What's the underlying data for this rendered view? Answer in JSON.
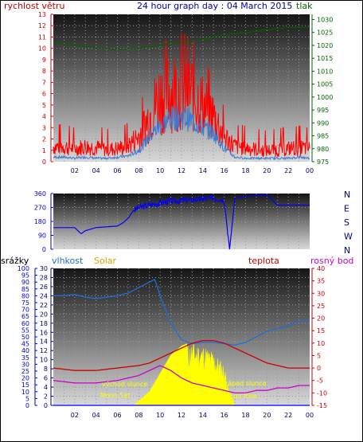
{
  "header": {
    "wind_label": "rychlost větru",
    "title": "24 hour graph day : 04 March 2015",
    "pressure_label": "tlak"
  },
  "bottom_labels": {
    "rain": "srážky",
    "humidity": "vlhkost",
    "solar": "Solar",
    "temperature": "teplota",
    "dewpoint": "rosný bod"
  },
  "annotations": {
    "sunrise": "východ slunce",
    "sunset": "západ slunce",
    "moonset": "Moon Set",
    "moonrise": "Moon Rise"
  },
  "colors": {
    "wind": "#ff0000",
    "wind_avg": "#3a7bd5",
    "pressure": "#006400",
    "direction": "#0000ff",
    "humidity": "#1e6fd9",
    "temperature": "#cc0000",
    "dewpoint": "#cc00cc",
    "solar": "#ffff00",
    "rain": "#0000ff"
  },
  "chart_data": [
    {
      "type": "line",
      "name": "wind",
      "x_ticks": [
        "02",
        "04",
        "06",
        "08",
        "10",
        "12",
        "14",
        "16",
        "18",
        "20",
        "22",
        "00"
      ],
      "left_axis": {
        "label": "rychlost větru",
        "ticks": [
          "0",
          "1",
          "2",
          "3",
          "4",
          "5",
          "6",
          "7",
          "8",
          "9",
          "10",
          "11",
          "12",
          "13"
        ],
        "range": [
          0,
          13
        ]
      },
      "right_axis": {
        "label": "tlak",
        "ticks": [
          "975",
          "980",
          "985",
          "990",
          "995",
          "1000",
          "1005",
          "1010",
          "1015",
          "1020",
          "1025",
          "1030"
        ],
        "range": [
          975,
          1032
        ]
      },
      "series": [
        {
          "name": "gust",
          "x": [
            0,
            1,
            2,
            3,
            4,
            5,
            6,
            7,
            8,
            9,
            10,
            11,
            12,
            13,
            14,
            15,
            16,
            17,
            18,
            19,
            20,
            21,
            22,
            23,
            24
          ],
          "values": [
            1.5,
            1.5,
            1.3,
            1.5,
            1.4,
            1.2,
            1.3,
            1.6,
            2.5,
            4.5,
            6.5,
            7.0,
            7.3,
            6.8,
            5.5,
            4.5,
            2.5,
            1.5,
            1.4,
            1.2,
            1.1,
            1.2,
            1.3,
            1.4,
            1.3
          ]
        },
        {
          "name": "average",
          "x": [
            0,
            1,
            2,
            3,
            4,
            5,
            6,
            7,
            8,
            9,
            10,
            11,
            12,
            13,
            14,
            15,
            16,
            17,
            18,
            19,
            20,
            21,
            22,
            23,
            24
          ],
          "values": [
            0.4,
            0.4,
            0.3,
            0.4,
            0.3,
            0.3,
            0.4,
            0.5,
            1.0,
            2.2,
            3.2,
            3.8,
            4.0,
            3.6,
            3.0,
            2.5,
            1.2,
            0.4,
            0.3,
            0.3,
            0.3,
            0.3,
            0.3,
            0.4,
            0.3
          ]
        },
        {
          "name": "pressure",
          "x": [
            0,
            2,
            4,
            6,
            8,
            10,
            12,
            14,
            16,
            18,
            20,
            22,
            24
          ],
          "values": [
            1021,
            1020,
            1019,
            1018.5,
            1019,
            1020,
            1021,
            1022.5,
            1024,
            1025,
            1026,
            1027,
            1027
          ]
        }
      ]
    },
    {
      "type": "line",
      "name": "wind direction",
      "left_axis": {
        "ticks": [
          "0",
          "90",
          "180",
          "270",
          "360"
        ],
        "range": [
          0,
          360
        ]
      },
      "right_axis": {
        "ticks": [
          "N",
          "W",
          "S",
          "E",
          "N"
        ]
      },
      "series": [
        {
          "name": "direction",
          "x": [
            0,
            1,
            2,
            2.6,
            3,
            4,
            5,
            6,
            6.5,
            7,
            7.5,
            8,
            9,
            10,
            11,
            12,
            13,
            14,
            15,
            16,
            16.5,
            17,
            18,
            19,
            20,
            21,
            22,
            24
          ],
          "values": [
            140,
            140,
            140,
            100,
            120,
            140,
            145,
            150,
            170,
            200,
            250,
            270,
            285,
            300,
            310,
            315,
            320,
            325,
            330,
            320,
            0,
            330,
            340,
            350,
            350,
            285,
            285,
            285
          ]
        }
      ]
    },
    {
      "type": "line",
      "name": "humidity temperature solar",
      "left_axis": {
        "label": "srážky",
        "ticks": [
          "0",
          "5",
          "10",
          "15",
          "20",
          "25",
          "30",
          "35",
          "40",
          "45",
          "50",
          "55",
          "60",
          "65",
          "70",
          "75",
          "80",
          "85",
          "90",
          "95",
          "100"
        ],
        "range": [
          0,
          100
        ]
      },
      "left_axis_2": {
        "label": "vlhkost",
        "ticks": [
          "0",
          "2",
          "4",
          "6",
          "8",
          "10",
          "12",
          "14",
          "16",
          "18",
          "20",
          "22",
          "24",
          "26",
          "28",
          "30"
        ],
        "range": [
          0,
          30
        ]
      },
      "right_axis": {
        "label": "teplota",
        "ticks": [
          "-15",
          "-10",
          "-5",
          "0",
          "5",
          "10",
          "15",
          "20",
          "25",
          "30",
          "35",
          "40"
        ],
        "range": [
          -15,
          40
        ]
      },
      "series": [
        {
          "name": "humidity",
          "x": [
            0,
            1,
            2,
            3,
            4,
            5,
            6,
            7,
            8,
            9,
            9.5,
            10,
            11,
            12,
            13,
            14,
            15,
            16,
            17,
            18,
            19,
            20,
            21,
            22,
            23,
            24
          ],
          "values": [
            80,
            80,
            81,
            79,
            78,
            79,
            80,
            82,
            86,
            90,
            92,
            80,
            60,
            48,
            45,
            46,
            46,
            45,
            44,
            46,
            50,
            54,
            56,
            58,
            62,
            62
          ]
        },
        {
          "name": "temperature",
          "x": [
            0,
            2,
            4,
            6,
            8,
            9,
            10,
            11,
            12,
            13,
            14,
            15,
            16,
            17,
            18,
            19,
            20,
            21,
            22,
            23,
            24
          ],
          "values": [
            0,
            -1,
            -1,
            0,
            1,
            2,
            4,
            6,
            8,
            10,
            11,
            11,
            10,
            8,
            6,
            4,
            2,
            1,
            0,
            0,
            0
          ]
        },
        {
          "name": "dewpoint",
          "x": [
            0,
            2,
            4,
            6,
            8,
            9,
            10,
            11,
            12,
            13,
            14,
            15,
            16,
            17,
            18,
            19,
            20,
            21,
            22,
            23,
            24
          ],
          "values": [
            -5,
            -6,
            -6,
            -5,
            -3,
            -1,
            1,
            -1,
            -4,
            -6,
            -7,
            -8,
            -9,
            -10,
            -10,
            -9,
            -9,
            -8,
            -8,
            -7,
            -7
          ]
        },
        {
          "name": "solar",
          "x": [
            0,
            7.5,
            8,
            9,
            10,
            11,
            12,
            13,
            14,
            15,
            16,
            16.5,
            17,
            24
          ],
          "values": [
            0,
            0,
            1,
            3,
            7,
            11,
            13,
            14,
            13.5,
            12,
            9,
            3,
            0,
            0
          ]
        },
        {
          "name": "rain",
          "x": [
            0,
            24
          ],
          "values": [
            0,
            0
          ]
        }
      ]
    }
  ]
}
